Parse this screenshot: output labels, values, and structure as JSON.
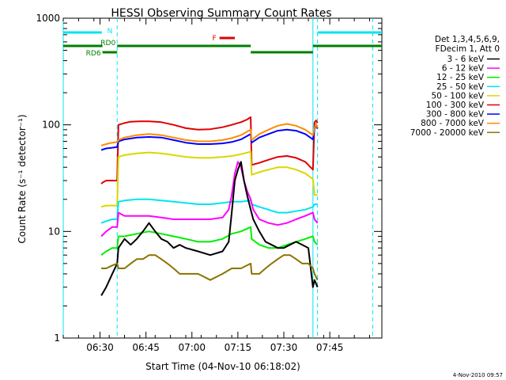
{
  "chart_data": {
    "type": "line",
    "title": "HESSI Observing Summary Count Rates",
    "xlabel": "Start Time (04-Nov-10 06:18:02)",
    "ylabel": "Count Rate (s⁻¹ detector⁻¹)",
    "y_scale": "log",
    "ylim": [
      1,
      1000
    ],
    "xlim_minutes_after_0618": [
      0,
      104
    ],
    "x_ticks": [
      {
        "label": "06:30",
        "minute": 12
      },
      {
        "label": "06:45",
        "minute": 27
      },
      {
        "label": "07:00",
        "minute": 42
      },
      {
        "label": "07:15",
        "minute": 57
      },
      {
        "label": "07:30",
        "minute": 72
      },
      {
        "label": "07:45",
        "minute": 87
      }
    ],
    "y_ticks": [
      {
        "label": "1",
        "value": 1
      },
      {
        "label": "10",
        "value": 10
      },
      {
        "label": "100",
        "value": 100
      },
      {
        "label": "1000",
        "value": 1000
      }
    ],
    "legend": {
      "placement": "right",
      "header": [
        "Det 1,3,4,5,6,9,",
        "FDecim 1, Att 0"
      ],
      "entries": [
        {
          "label": "3 - 6 keV",
          "color": "#000000"
        },
        {
          "label": "6 - 12 keV",
          "color": "#ff00ff"
        },
        {
          "label": "12 - 25 keV",
          "color": "#00ee00"
        },
        {
          "label": "25 - 50 keV",
          "color": "#00e5ee"
        },
        {
          "label": "50 - 100 keV",
          "color": "#d8d800"
        },
        {
          "label": "100 - 300 keV",
          "color": "#e00000"
        },
        {
          "label": "300 - 800 keV",
          "color": "#0000ff"
        },
        {
          "label": "800 - 7000 keV",
          "color": "#ff8c00"
        },
        {
          "label": "7000 - 20000 keV",
          "color": "#8b7300"
        }
      ]
    },
    "series": [
      {
        "color": "#e00000",
        "x": [
          12.4,
          13,
          14,
          15,
          16,
          17.6,
          18,
          20,
          22,
          25,
          28,
          32,
          36,
          40,
          44,
          48,
          52,
          55,
          58,
          60,
          61.2,
          61.5,
          64,
          67,
          70,
          73,
          76,
          79,
          81.5,
          82,
          82.5,
          83
        ],
        "y": [
          28,
          29,
          30,
          30,
          30,
          30,
          100,
          104,
          107,
          108,
          108,
          106,
          100,
          93,
          90,
          91,
          95,
          100,
          106,
          112,
          118,
          42,
          44,
          47,
          50,
          51,
          49,
          45,
          38,
          105,
          110,
          104
        ]
      },
      {
        "color": "#0000ff",
        "x": [
          12.4,
          14,
          16,
          17.6,
          18,
          20,
          24,
          28,
          32,
          36,
          40,
          44,
          48,
          52,
          55,
          58,
          61.2,
          61.5,
          64,
          67,
          70,
          73,
          76,
          79,
          81.5,
          82,
          82.5,
          83
        ],
        "y": [
          58,
          60,
          61,
          62,
          70,
          73,
          76,
          77,
          76,
          72,
          68,
          66,
          66,
          67,
          69,
          73,
          82,
          68,
          76,
          82,
          88,
          90,
          88,
          82,
          73,
          90,
          100,
          92
        ]
      },
      {
        "color": "#ff8c00",
        "x": [
          12.4,
          14,
          16,
          17.6,
          18,
          20,
          24,
          28,
          32,
          36,
          40,
          44,
          48,
          52,
          55,
          58,
          61.2,
          61.5,
          64,
          67,
          70,
          73,
          76,
          79,
          81.5,
          82,
          82.5,
          83
        ],
        "y": [
          64,
          66,
          68,
          69,
          72,
          76,
          80,
          82,
          80,
          76,
          72,
          70,
          70,
          72,
          75,
          80,
          90,
          72,
          82,
          90,
          98,
          102,
          98,
          90,
          80,
          92,
          102,
          94
        ]
      },
      {
        "color": "#d8d800",
        "x": [
          12.4,
          14,
          16,
          17.6,
          18,
          20,
          24,
          28,
          32,
          36,
          40,
          44,
          48,
          52,
          55,
          58,
          61.2,
          61.5,
          64,
          67,
          70,
          73,
          76,
          79,
          81.5,
          82,
          82.5,
          83
        ],
        "y": [
          17,
          17.5,
          17.5,
          17.5,
          50,
          52,
          54,
          55,
          54,
          52,
          50,
          49,
          49,
          50,
          51,
          53,
          56,
          34,
          36,
          38,
          40,
          40,
          38,
          35,
          31,
          22,
          22,
          22
        ]
      },
      {
        "color": "#00e5ee",
        "x": [
          12.4,
          14,
          16,
          17.6,
          18,
          20,
          24,
          28,
          32,
          36,
          40,
          44,
          48,
          52,
          55,
          58,
          61.2,
          61.5,
          64,
          67,
          70,
          73,
          76,
          79,
          81.5,
          82,
          82.5,
          83
        ],
        "y": [
          12,
          12.5,
          13,
          13,
          19,
          19.5,
          20,
          20,
          19.5,
          19,
          18.5,
          18,
          18,
          18.5,
          19,
          19,
          19.5,
          18,
          17,
          16,
          15,
          15,
          15.5,
          16,
          17,
          18,
          18,
          18
        ]
      },
      {
        "color": "#ff00ff",
        "x": [
          12.4,
          14,
          16,
          17.6,
          18,
          20,
          24,
          28,
          32,
          36,
          40,
          44,
          48,
          52,
          54,
          55,
          56,
          57,
          58,
          59,
          60,
          61.2,
          62,
          64,
          67,
          70,
          73,
          76,
          79,
          81.5,
          82,
          83
        ],
        "y": [
          9,
          10,
          11,
          11,
          15,
          14,
          14,
          14,
          13.5,
          13,
          13,
          13,
          13,
          13.5,
          16,
          22,
          35,
          45,
          40,
          30,
          24,
          20,
          16,
          13,
          12,
          11.5,
          12,
          13,
          14,
          15,
          13,
          12
        ]
      },
      {
        "color": "#00ee00",
        "x": [
          12.4,
          14,
          16,
          17.6,
          18,
          20,
          24,
          28,
          32,
          36,
          40,
          44,
          48,
          52,
          55,
          58,
          61.2,
          61.5,
          64,
          67,
          70,
          73,
          76,
          79,
          81.5,
          82,
          83
        ],
        "y": [
          6,
          6.5,
          7,
          7,
          9,
          9,
          9.5,
          10,
          9.5,
          9,
          8.5,
          8,
          8,
          8.5,
          9.5,
          10,
          11,
          8.5,
          7.5,
          7,
          7,
          7.5,
          8,
          8.5,
          9,
          8,
          7.5
        ]
      },
      {
        "color": "#000000",
        "x": [
          12.4,
          14,
          16,
          17.6,
          18,
          20,
          22,
          24,
          26,
          28,
          30,
          32,
          34,
          36,
          38,
          40,
          44,
          48,
          52,
          54,
          55,
          56,
          57,
          58,
          59,
          60,
          61.2,
          62,
          64,
          66,
          68,
          70,
          72,
          74,
          76,
          78,
          80,
          81.5,
          82,
          83
        ],
        "y": [
          2.5,
          3,
          4,
          5,
          7,
          8.5,
          7.5,
          8.5,
          10,
          12,
          10,
          8.5,
          8,
          7,
          7.5,
          7,
          6.5,
          6,
          6.5,
          8,
          15,
          30,
          38,
          45,
          30,
          22,
          16,
          13,
          10,
          8,
          7.5,
          7,
          7,
          7.5,
          8,
          7.5,
          7,
          3,
          3.5,
          3
        ]
      },
      {
        "color": "#8b7300",
        "x": [
          12.4,
          14,
          16,
          17.6,
          18,
          20,
          22,
          24,
          26,
          28,
          30,
          32,
          34,
          36,
          38,
          40,
          44,
          48,
          52,
          55,
          58,
          61.2,
          61.5,
          64,
          66,
          68,
          70,
          72,
          74,
          76,
          78,
          80,
          81.5,
          82,
          83
        ],
        "y": [
          4.5,
          4.5,
          4.8,
          5,
          4.5,
          4.5,
          5,
          5.5,
          5.5,
          6,
          6,
          5.5,
          5,
          4.5,
          4,
          4,
          4,
          3.5,
          4,
          4.5,
          4.5,
          5,
          4,
          4,
          4.5,
          5,
          5.5,
          6,
          6,
          5.5,
          5,
          5,
          4.5,
          4,
          3.5
        ]
      }
    ],
    "annotations": [
      {
        "text": "N",
        "color": "#00e5ee",
        "bar_minutes": [
          [
            0,
            12.6
          ],
          [
            83,
            104
          ]
        ]
      },
      {
        "text": "RD0",
        "color": "#007f00",
        "bar_minutes": [
          [
            0,
            12.8
          ],
          [
            17.6,
            61.2
          ],
          [
            81.5,
            104
          ]
        ]
      },
      {
        "text": "RD6",
        "color": "#007f00",
        "bar_minutes": [
          [
            12.8,
            17.6
          ],
          [
            61.2,
            81.5
          ]
        ]
      },
      {
        "text": "F",
        "color": "#e00000",
        "bar_minutes": [
          [
            51,
            56
          ]
        ]
      }
    ],
    "vertical_markers_minutes": {
      "solid": [
        0,
        81.5
      ],
      "dashed": [
        17.6,
        83,
        101
      ]
    }
  },
  "footer": {
    "timestamp": "4-Nov-2010 09:57"
  }
}
